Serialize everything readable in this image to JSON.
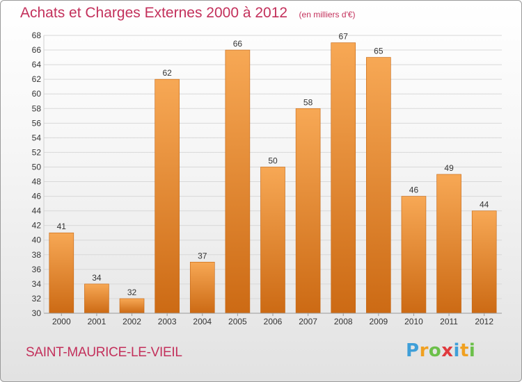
{
  "title": "Achats et Charges Externes 2000 à 2012",
  "subtitle": "(en milliers d'€)",
  "commune": "SAINT-MAURICE-LE-VIEIL",
  "logo": {
    "letters": [
      "P",
      "r",
      "o",
      "x",
      "i",
      "t",
      "i"
    ],
    "colors": [
      "#3f9fd8",
      "#f0a020",
      "#6cc04a",
      "#e03a3e",
      "#3f9fd8",
      "#f0a020",
      "#6cc04a"
    ]
  },
  "colors": {
    "bar_top": "#f7a855",
    "bar_bottom": "#cc6a14",
    "grid": "#d8d8d8",
    "text": "#333333",
    "accent": "#c3305b"
  },
  "chart_data": {
    "type": "bar",
    "categories": [
      "2000",
      "2001",
      "2002",
      "2003",
      "2004",
      "2005",
      "2006",
      "2007",
      "2008",
      "2009",
      "2010",
      "2011",
      "2012"
    ],
    "values": [
      41,
      34,
      32,
      62,
      37,
      66,
      50,
      58,
      67,
      65,
      46,
      49,
      44
    ],
    "ylim": [
      30,
      68
    ],
    "yticks": [
      30,
      32,
      34,
      36,
      38,
      40,
      42,
      44,
      46,
      48,
      50,
      52,
      54,
      56,
      58,
      60,
      62,
      64,
      66,
      68
    ],
    "grid": true,
    "data_labels": true
  }
}
